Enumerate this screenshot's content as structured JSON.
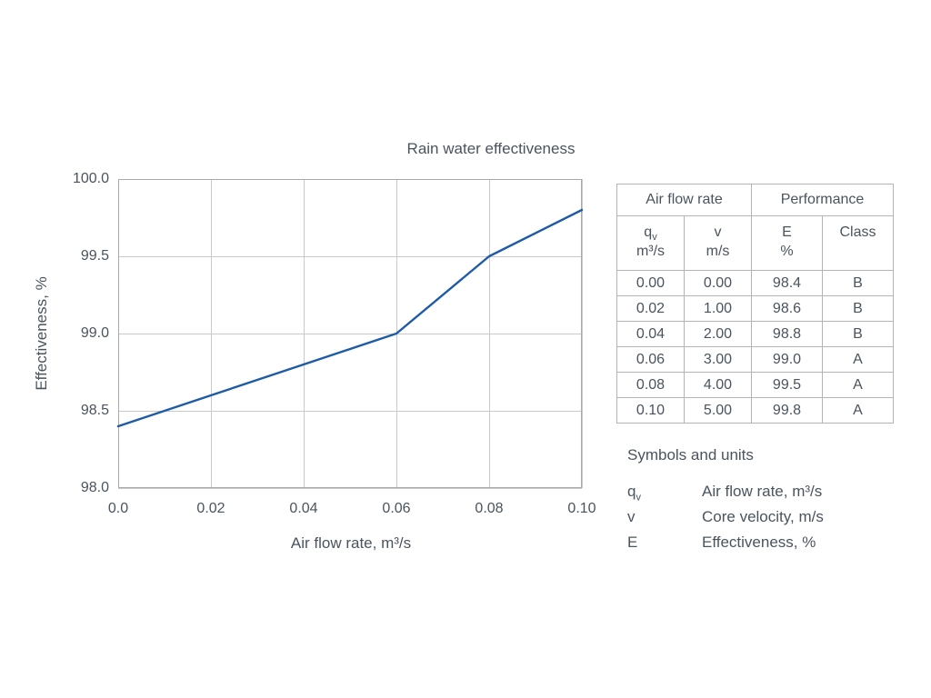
{
  "chart_data": {
    "type": "line",
    "title": "Rain water effectiveness",
    "xlabel": "Air flow rate, m³/s",
    "ylabel": "Effectiveness, %",
    "xlim": [
      0,
      0.1
    ],
    "ylim": [
      98.0,
      100.0
    ],
    "x": [
      0.0,
      0.02,
      0.04,
      0.06,
      0.08,
      0.1
    ],
    "y": [
      98.4,
      98.6,
      98.8,
      99.0,
      99.5,
      99.8
    ],
    "xticks": [
      "0.0",
      "0.02",
      "0.04",
      "0.06",
      "0.08",
      "0.10"
    ],
    "yticks": [
      "100.0",
      "99.5",
      "99.0",
      "98.5",
      "98.0"
    ],
    "grid": true,
    "legend": "none",
    "line_color": "#1e5aa8"
  },
  "table": {
    "group_headers": [
      {
        "label": "Air flow rate"
      },
      {
        "label": "Performance"
      }
    ],
    "columns": [
      {
        "symbol": "q",
        "sub": "v",
        "unit": "m³/s"
      },
      {
        "symbol": "v",
        "sub": "",
        "unit": "m/s"
      },
      {
        "symbol": "E",
        "sub": "",
        "unit": "%"
      },
      {
        "symbol": "Class",
        "sub": "",
        "unit": ""
      }
    ],
    "rows": [
      [
        "0.00",
        "0.00",
        "98.4",
        "B"
      ],
      [
        "0.02",
        "1.00",
        "98.6",
        "B"
      ],
      [
        "0.04",
        "2.00",
        "98.8",
        "B"
      ],
      [
        "0.06",
        "3.00",
        "99.0",
        "A"
      ],
      [
        "0.08",
        "4.00",
        "99.5",
        "A"
      ],
      [
        "0.10",
        "5.00",
        "99.8",
        "A"
      ]
    ]
  },
  "symbols": {
    "heading": "Symbols and units",
    "items": [
      {
        "symbol": "q",
        "sub": "v",
        "description": "Air flow rate, m³/s"
      },
      {
        "symbol": "v",
        "sub": "",
        "description": "Core velocity, m/s"
      },
      {
        "symbol": "E",
        "sub": "",
        "description": "Effectiveness, %"
      }
    ]
  }
}
